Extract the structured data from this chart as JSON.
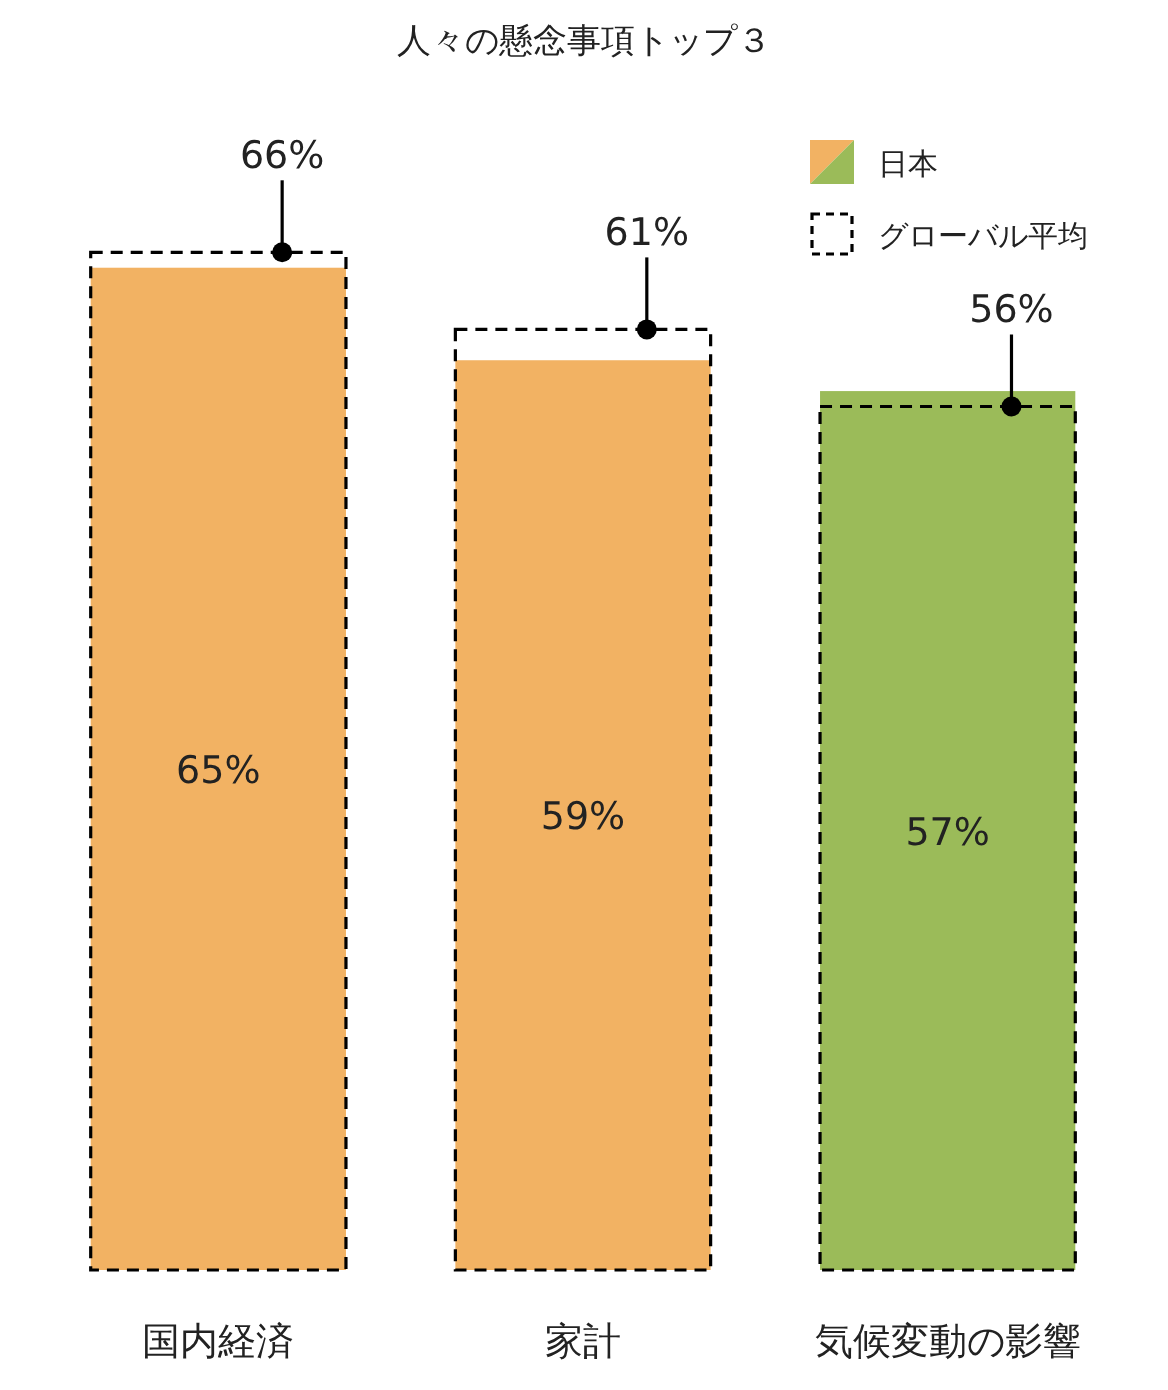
{
  "chart_data": {
    "type": "bar",
    "title": "人々の懸念事項トップ３",
    "categories": [
      "国内経済",
      "家計",
      "気候変動の影響"
    ],
    "series": [
      {
        "name": "日本",
        "colors": [
          "#f2b263",
          "#f2b263",
          "#9bbb59"
        ],
        "values": [
          65,
          59,
          57
        ],
        "value_labels": [
          "65%",
          "59%",
          "57%"
        ]
      },
      {
        "name": "グローバル平均",
        "color": "#000000",
        "line_style": "dashed",
        "values": [
          66,
          61,
          56
        ],
        "value_labels": [
          "66%",
          "61%",
          "56%"
        ]
      }
    ],
    "legend": "top right"
  }
}
